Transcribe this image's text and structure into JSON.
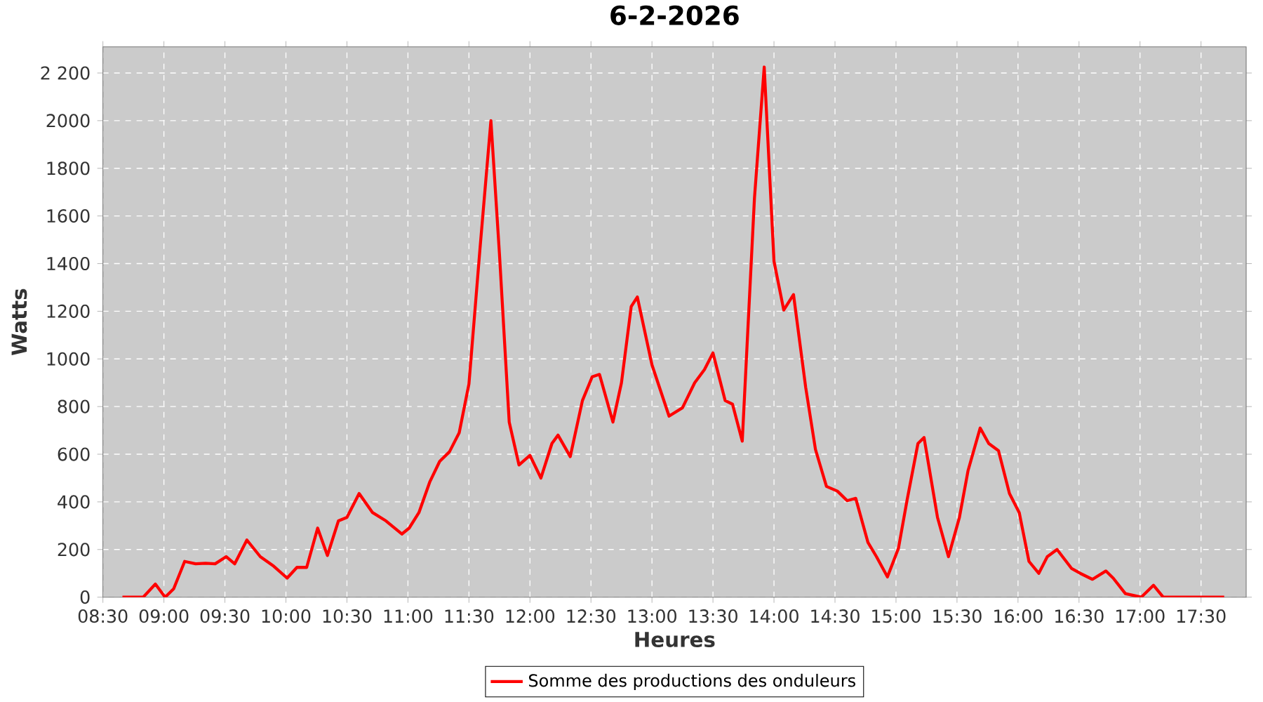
{
  "chart_data": {
    "type": "line",
    "title": "6-2-2026",
    "xlabel": "Heures",
    "ylabel": "Watts",
    "xlim": [
      8.5,
      17.87
    ],
    "ylim": [
      0,
      2310
    ],
    "xticks": [
      {
        "value": 8.5,
        "label": "08:30"
      },
      {
        "value": 9,
        "label": "09:00"
      },
      {
        "value": 9.5,
        "label": "09:30"
      },
      {
        "value": 10,
        "label": "10:00"
      },
      {
        "value": 10.5,
        "label": "10:30"
      },
      {
        "value": 11,
        "label": "11:00"
      },
      {
        "value": 11.5,
        "label": "11:30"
      },
      {
        "value": 12,
        "label": "12:00"
      },
      {
        "value": 12.5,
        "label": "12:30"
      },
      {
        "value": 13,
        "label": "13:00"
      },
      {
        "value": 13.5,
        "label": "13:30"
      },
      {
        "value": 14,
        "label": "14:00"
      },
      {
        "value": 14.5,
        "label": "14:30"
      },
      {
        "value": 15,
        "label": "15:00"
      },
      {
        "value": 15.5,
        "label": "15:30"
      },
      {
        "value": 16,
        "label": "16:00"
      },
      {
        "value": 16.5,
        "label": "16:30"
      },
      {
        "value": 17,
        "label": "17:00"
      },
      {
        "value": 17.5,
        "label": "17:30"
      }
    ],
    "yticks": [
      0,
      200,
      400,
      600,
      800,
      1000,
      1200,
      1400,
      1600,
      1800,
      2000,
      {
        "value": 2200,
        "label": "2 200"
      }
    ],
    "grid": true,
    "legend": "bottom",
    "line_style": "solid",
    "series": [
      {
        "name": "Somme des productions des onduleurs",
        "color": "#ff0000",
        "x": [
          8.66,
          8.75,
          8.83,
          8.93,
          9.01,
          9.08,
          9.17,
          9.26,
          9.34,
          9.42,
          9.51,
          9.58,
          9.68,
          9.79,
          9.9,
          10.01,
          10.09,
          10.17,
          10.26,
          10.34,
          10.43,
          10.5,
          10.6,
          10.71,
          10.82,
          10.95,
          11.01,
          11.09,
          11.18,
          11.26,
          11.34,
          11.42,
          11.5,
          11.59,
          11.68,
          11.75,
          11.83,
          11.91,
          12.0,
          12.09,
          12.18,
          12.23,
          12.33,
          12.43,
          12.51,
          12.57,
          12.68,
          12.75,
          12.83,
          12.88,
          13.0,
          13.14,
          13.25,
          13.35,
          13.43,
          13.5,
          13.6,
          13.66,
          13.74,
          13.84,
          13.92,
          14.0,
          14.08,
          14.16,
          14.26,
          14.34,
          14.43,
          14.52,
          14.6,
          14.67,
          14.77,
          14.84,
          14.93,
          15.02,
          15.09,
          15.18,
          15.23,
          15.34,
          15.43,
          15.52,
          15.59,
          15.69,
          15.76,
          15.84,
          15.93,
          16.01,
          16.09,
          16.17,
          16.24,
          16.32,
          16.44,
          16.51,
          16.61,
          16.72,
          16.78,
          16.88,
          17.01,
          17.11,
          17.19,
          17.26,
          17.35,
          17.44,
          17.52,
          17.61,
          17.69
        ],
        "values": [
          0,
          0,
          0,
          55,
          0,
          35,
          150,
          140,
          142,
          140,
          170,
          140,
          240,
          170,
          130,
          80,
          125,
          125,
          290,
          175,
          320,
          335,
          435,
          355,
          320,
          265,
          290,
          355,
          485,
          570,
          610,
          690,
          895,
          1460,
          2000,
          1440,
          735,
          555,
          595,
          500,
          645,
          680,
          590,
          825,
          925,
          935,
          735,
          900,
          1220,
          1260,
          975,
          760,
          795,
          900,
          955,
          1025,
          825,
          810,
          655,
          1675,
          2225,
          1410,
          1205,
          1270,
          880,
          620,
          465,
          445,
          405,
          415,
          230,
          170,
          85,
          205,
          405,
          645,
          670,
          335,
          170,
          335,
          530,
          710,
          645,
          615,
          435,
          355,
          150,
          100,
          170,
          200,
          120,
          100,
          75,
          110,
          80,
          15,
          0,
          50,
          0,
          0,
          0,
          0,
          0,
          0,
          0
        ]
      }
    ]
  }
}
